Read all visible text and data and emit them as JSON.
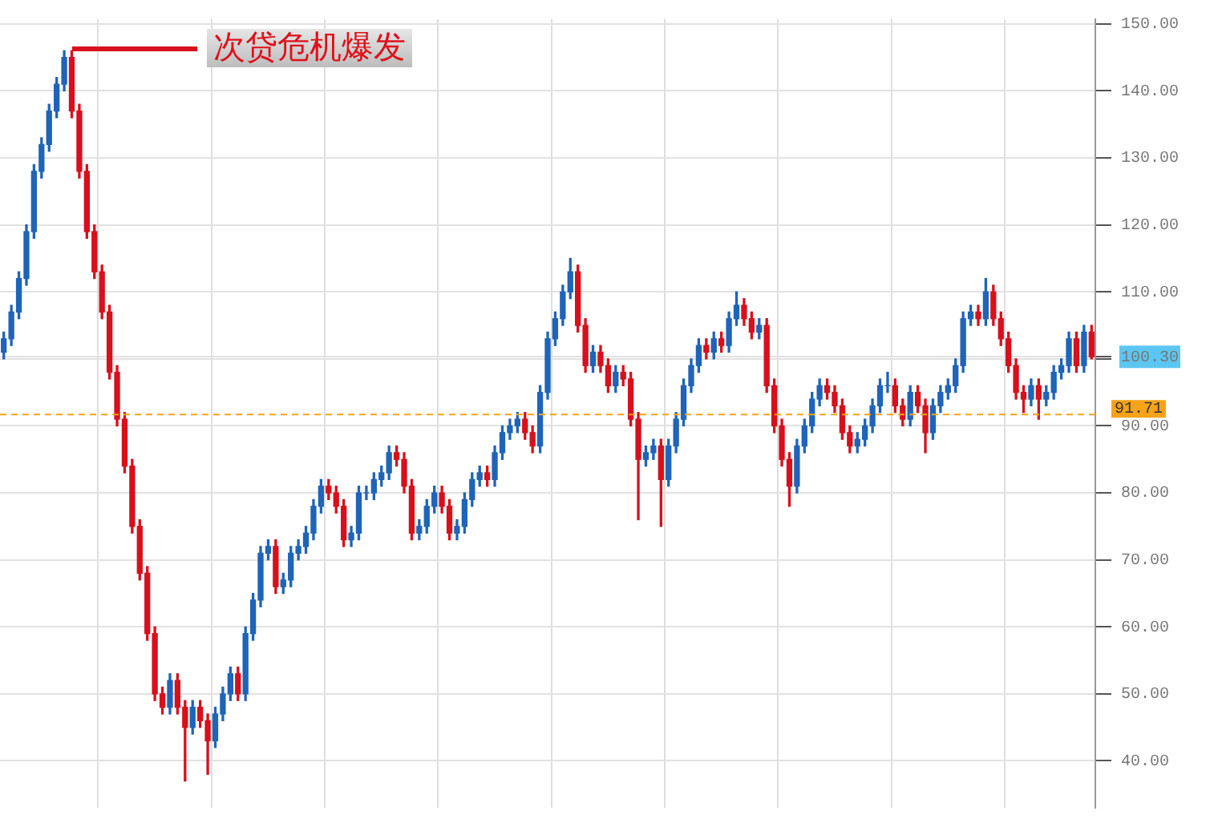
{
  "chart_data": {
    "type": "candlestick",
    "categories": [
      null,
      null,
      null,
      null,
      null,
      null,
      null,
      null,
      null,
      null,
      null,
      null,
      null,
      null,
      null,
      null,
      null,
      null,
      null,
      null,
      null,
      null,
      null,
      null,
      null,
      null,
      null,
      null,
      null,
      null,
      null,
      null,
      null,
      null,
      null,
      null,
      null,
      null,
      null,
      null,
      null,
      null,
      null,
      null,
      null,
      null,
      null,
      null,
      null,
      null,
      null,
      null,
      null,
      null,
      null,
      null,
      null,
      null,
      null,
      null,
      null,
      null,
      null,
      null,
      null,
      null,
      null,
      null,
      null,
      null,
      null,
      null,
      null,
      null,
      null,
      null,
      null,
      null,
      null,
      null,
      null,
      null,
      null,
      null,
      null,
      null,
      null,
      null,
      null,
      null,
      null,
      null,
      null,
      null,
      null,
      null,
      null,
      null,
      null,
      null,
      null,
      null,
      null,
      null,
      null,
      null,
      null,
      null,
      null,
      null,
      null,
      null,
      null,
      null,
      null,
      null,
      null,
      null,
      null,
      null,
      null,
      null,
      null,
      null,
      null,
      null,
      null,
      null,
      null,
      null,
      null,
      null,
      null,
      null,
      null,
      null,
      null,
      null,
      null,
      null,
      null,
      null,
      null,
      null,
      null
    ],
    "ohlc": [
      [
        101,
        104,
        100,
        103
      ],
      [
        103,
        108,
        102,
        107
      ],
      [
        107,
        113,
        106,
        112
      ],
      [
        112,
        120,
        111,
        119
      ],
      [
        119,
        129,
        118,
        128
      ],
      [
        128,
        133,
        127,
        132
      ],
      [
        132,
        138,
        131,
        137
      ],
      [
        137,
        142,
        136,
        141
      ],
      [
        141,
        146,
        140,
        145
      ],
      [
        145,
        146,
        136,
        137
      ],
      [
        137,
        138,
        127,
        128
      ],
      [
        128,
        129,
        118,
        119
      ],
      [
        119,
        120,
        112,
        113
      ],
      [
        113,
        114,
        106,
        107
      ],
      [
        107,
        108,
        97,
        98
      ],
      [
        98,
        99,
        90,
        91
      ],
      [
        91,
        92,
        83,
        84
      ],
      [
        84,
        85,
        74,
        75
      ],
      [
        75,
        76,
        67,
        68
      ],
      [
        68,
        69,
        58,
        59
      ],
      [
        59,
        60,
        49,
        50
      ],
      [
        50,
        51,
        47,
        48
      ],
      [
        48,
        53,
        47,
        52
      ],
      [
        52,
        53,
        47,
        48
      ],
      [
        48,
        49,
        37,
        45
      ],
      [
        45,
        49,
        44,
        48
      ],
      [
        48,
        49,
        45,
        46
      ],
      [
        46,
        47,
        38,
        43
      ],
      [
        43,
        48,
        42,
        47
      ],
      [
        47,
        51,
        46,
        50
      ],
      [
        50,
        54,
        49,
        53
      ],
      [
        53,
        54,
        49,
        50
      ],
      [
        50,
        60,
        49,
        59
      ],
      [
        59,
        65,
        58,
        64
      ],
      [
        64,
        72,
        63,
        71
      ],
      [
        71,
        73,
        70,
        72
      ],
      [
        72,
        73,
        65,
        66
      ],
      [
        66,
        68,
        65,
        67
      ],
      [
        67,
        72,
        66,
        71
      ],
      [
        71,
        73,
        70,
        72
      ],
      [
        72,
        75,
        71,
        74
      ],
      [
        74,
        79,
        73,
        78
      ],
      [
        78,
        82,
        77,
        81
      ],
      [
        81,
        82,
        79,
        80
      ],
      [
        80,
        81,
        77,
        78
      ],
      [
        78,
        79,
        72,
        73
      ],
      [
        73,
        75,
        72,
        74
      ],
      [
        74,
        81,
        73,
        80
      ],
      [
        80,
        81,
        79,
        80
      ],
      [
        80,
        83,
        79,
        82
      ],
      [
        82,
        84,
        81,
        83
      ],
      [
        83,
        87,
        82,
        86
      ],
      [
        86,
        87,
        84,
        85
      ],
      [
        85,
        86,
        80,
        81
      ],
      [
        81,
        82,
        73,
        74
      ],
      [
        74,
        76,
        73,
        75
      ],
      [
        75,
        79,
        74,
        78
      ],
      [
        78,
        81,
        77,
        80
      ],
      [
        80,
        81,
        77,
        78
      ],
      [
        78,
        79,
        73,
        74
      ],
      [
        74,
        76,
        73,
        75
      ],
      [
        75,
        80,
        74,
        79
      ],
      [
        79,
        83,
        78,
        82
      ],
      [
        82,
        84,
        81,
        83
      ],
      [
        83,
        84,
        81,
        82
      ],
      [
        82,
        87,
        81,
        86
      ],
      [
        86,
        90,
        85,
        89
      ],
      [
        89,
        91,
        88,
        90
      ],
      [
        90,
        92,
        89,
        91
      ],
      [
        91,
        92,
        88,
        89
      ],
      [
        89,
        90,
        86,
        87
      ],
      [
        87,
        96,
        86,
        95
      ],
      [
        95,
        104,
        94,
        103
      ],
      [
        103,
        107,
        102,
        106
      ],
      [
        106,
        111,
        105,
        110
      ],
      [
        110,
        115,
        109,
        113
      ],
      [
        113,
        114,
        104,
        105
      ],
      [
        105,
        106,
        98,
        99
      ],
      [
        99,
        102,
        98,
        101
      ],
      [
        101,
        102,
        98,
        99
      ],
      [
        99,
        100,
        95,
        96
      ],
      [
        96,
        99,
        95,
        98
      ],
      [
        98,
        99,
        96,
        97
      ],
      [
        97,
        98,
        90,
        91
      ],
      [
        91,
        92,
        76,
        85
      ],
      [
        85,
        87,
        84,
        86
      ],
      [
        86,
        88,
        85,
        87
      ],
      [
        87,
        88,
        75,
        82
      ],
      [
        82,
        88,
        81,
        87
      ],
      [
        87,
        92,
        86,
        91
      ],
      [
        91,
        97,
        90,
        96
      ],
      [
        96,
        100,
        95,
        99
      ],
      [
        99,
        103,
        98,
        102
      ],
      [
        102,
        103,
        100,
        101
      ],
      [
        101,
        104,
        100,
        103
      ],
      [
        103,
        104,
        101,
        102
      ],
      [
        102,
        107,
        101,
        106
      ],
      [
        106,
        110,
        105,
        108
      ],
      [
        108,
        109,
        105,
        106
      ],
      [
        106,
        107,
        103,
        104
      ],
      [
        104,
        106,
        103,
        105
      ],
      [
        105,
        106,
        95,
        96
      ],
      [
        96,
        97,
        89,
        90
      ],
      [
        90,
        91,
        84,
        85
      ],
      [
        85,
        86,
        78,
        81
      ],
      [
        81,
        88,
        80,
        87
      ],
      [
        87,
        91,
        86,
        90
      ],
      [
        90,
        95,
        89,
        94
      ],
      [
        94,
        97,
        93,
        96
      ],
      [
        96,
        97,
        94,
        95
      ],
      [
        95,
        96,
        92,
        93
      ],
      [
        93,
        94,
        88,
        89
      ],
      [
        89,
        90,
        86,
        87
      ],
      [
        87,
        89,
        86,
        88
      ],
      [
        88,
        91,
        87,
        90
      ],
      [
        90,
        94,
        89,
        93
      ],
      [
        93,
        97,
        92,
        96
      ],
      [
        96,
        98,
        95,
        96
      ],
      [
        96,
        97,
        92,
        93
      ],
      [
        93,
        94,
        90,
        91
      ],
      [
        91,
        96,
        90,
        95
      ],
      [
        95,
        96,
        92,
        93
      ],
      [
        93,
        94,
        86,
        89
      ],
      [
        89,
        94,
        88,
        93
      ],
      [
        93,
        96,
        92,
        95
      ],
      [
        95,
        97,
        94,
        96
      ],
      [
        96,
        100,
        95,
        99
      ],
      [
        99,
        107,
        98,
        106
      ],
      [
        106,
        108,
        105,
        107
      ],
      [
        107,
        108,
        105,
        106
      ],
      [
        106,
        112,
        105,
        110
      ],
      [
        110,
        111,
        105,
        106
      ],
      [
        106,
        107,
        102,
        103
      ],
      [
        103,
        104,
        98,
        99
      ],
      [
        99,
        100,
        94,
        95
      ],
      [
        95,
        96,
        92,
        94
      ],
      [
        94,
        97,
        93,
        96
      ],
      [
        96,
        97,
        91,
        94
      ],
      [
        94,
        96,
        93,
        95
      ],
      [
        95,
        99,
        94,
        98
      ],
      [
        98,
        100,
        97,
        99
      ],
      [
        99,
        104,
        98,
        103
      ],
      [
        103,
        104,
        98,
        99
      ],
      [
        99,
        105,
        98,
        104
      ],
      [
        104,
        105,
        100,
        100.3
      ]
    ],
    "colors": [
      "#1f64b8",
      "#1f64b8",
      "#1f64b8",
      "#1f64b8",
      "#1f64b8",
      "#1f64b8",
      "#1f64b8",
      "#1f64b8",
      "#1f64b8",
      "#d8101c",
      "#d8101c",
      "#d8101c",
      "#d8101c",
      "#d8101c",
      "#d8101c",
      "#d8101c",
      "#d8101c",
      "#d8101c",
      "#d8101c",
      "#d8101c",
      "#d8101c",
      "#d8101c",
      "#1f64b8",
      "#d8101c",
      "#d8101c",
      "#1f64b8",
      "#d8101c",
      "#d8101c",
      "#1f64b8",
      "#1f64b8",
      "#1f64b8",
      "#d8101c",
      "#1f64b8",
      "#1f64b8",
      "#1f64b8",
      "#1f64b8",
      "#d8101c",
      "#1f64b8",
      "#1f64b8",
      "#1f64b8",
      "#1f64b8",
      "#1f64b8",
      "#1f64b8",
      "#d8101c",
      "#d8101c",
      "#d8101c",
      "#1f64b8",
      "#1f64b8",
      "#1f64b8",
      "#1f64b8",
      "#1f64b8",
      "#1f64b8",
      "#d8101c",
      "#d8101c",
      "#d8101c",
      "#1f64b8",
      "#1f64b8",
      "#1f64b8",
      "#d8101c",
      "#d8101c",
      "#1f64b8",
      "#1f64b8",
      "#1f64b8",
      "#1f64b8",
      "#d8101c",
      "#1f64b8",
      "#1f64b8",
      "#1f64b8",
      "#1f64b8",
      "#d8101c",
      "#d8101c",
      "#1f64b8",
      "#1f64b8",
      "#1f64b8",
      "#1f64b8",
      "#1f64b8",
      "#d8101c",
      "#d8101c",
      "#1f64b8",
      "#d8101c",
      "#d8101c",
      "#1f64b8",
      "#d8101c",
      "#d8101c",
      "#d8101c",
      "#1f64b8",
      "#1f64b8",
      "#d8101c",
      "#1f64b8",
      "#1f64b8",
      "#1f64b8",
      "#1f64b8",
      "#1f64b8",
      "#d8101c",
      "#1f64b8",
      "#d8101c",
      "#1f64b8",
      "#1f64b8",
      "#d8101c",
      "#d8101c",
      "#1f64b8",
      "#d8101c",
      "#d8101c",
      "#d8101c",
      "#d8101c",
      "#1f64b8",
      "#1f64b8",
      "#1f64b8",
      "#1f64b8",
      "#d8101c",
      "#d8101c",
      "#d8101c",
      "#d8101c",
      "#1f64b8",
      "#1f64b8",
      "#1f64b8",
      "#1f64b8",
      "#1f64b8",
      "#d8101c",
      "#d8101c",
      "#1f64b8",
      "#d8101c",
      "#d8101c",
      "#1f64b8",
      "#1f64b8",
      "#1f64b8",
      "#1f64b8",
      "#1f64b8",
      "#1f64b8",
      "#d8101c",
      "#1f64b8",
      "#d8101c",
      "#d8101c",
      "#d8101c",
      "#d8101c",
      "#d8101c",
      "#1f64b8",
      "#d8101c",
      "#1f64b8",
      "#1f64b8",
      "#1f64b8",
      "#1f64b8",
      "#d8101c",
      "#1f64b8",
      "#d8101c"
    ],
    "ylim": [
      33,
      150.7
    ],
    "yticks": [
      {
        "value": 40,
        "label": "40.00"
      },
      {
        "value": 50,
        "label": "50.00"
      },
      {
        "value": 60,
        "label": "60.00"
      },
      {
        "value": 70,
        "label": "70.00"
      },
      {
        "value": 80,
        "label": "80.00"
      },
      {
        "value": 90,
        "label": "90.00"
      },
      {
        "value": 100,
        "label": null
      },
      {
        "value": 100.3,
        "label": "100.30"
      },
      {
        "value": 110,
        "label": "110.00"
      },
      {
        "value": 120,
        "label": "120.00"
      },
      {
        "value": 130,
        "label": "130.00"
      },
      {
        "value": 140,
        "label": "140.00"
      },
      {
        "value": 150,
        "label": "150.00"
      }
    ],
    "tick_labels": "y",
    "grid": true,
    "ref_lines": [
      {
        "axis": "y",
        "value": 91.71,
        "label": "91.71",
        "color": "#f7a21b",
        "line_style": "dashed"
      }
    ],
    "annotations": [
      "次贷危机爆发"
    ]
  }
}
